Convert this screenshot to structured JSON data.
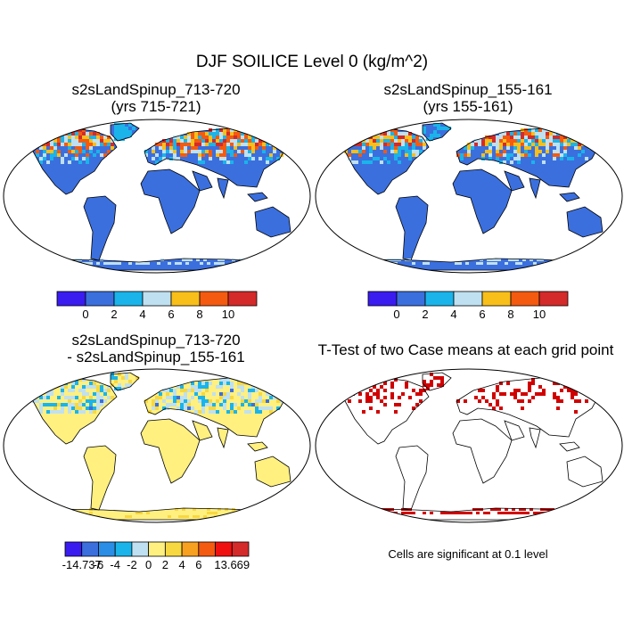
{
  "figure": {
    "title": "DJF SOILICE Level 0 (kg/m^2)",
    "significance_note": "Cells are significant at 0.1 level"
  },
  "chart_data": [
    {
      "type": "heatmap",
      "panel": "top-left",
      "title": "s2sLandSpinup_713-720",
      "subtitle": "(yrs 715-721)",
      "projection": "Robinson",
      "colorbar": {
        "colors": [
          "#3a1cf0",
          "#3b6fde",
          "#1ab4ea",
          "#bfe0f0",
          "#f8bf1a",
          "#f45a10",
          "#d42a2a"
        ],
        "ticks": [
          "0",
          "2",
          "4",
          "6",
          "8",
          "10"
        ]
      }
    },
    {
      "type": "heatmap",
      "panel": "top-right",
      "title": "s2sLandSpinup_155-161",
      "subtitle": "(yrs 155-161)",
      "projection": "Robinson",
      "colorbar": {
        "colors": [
          "#3a1cf0",
          "#3b6fde",
          "#1ab4ea",
          "#bfe0f0",
          "#f8bf1a",
          "#f45a10",
          "#d42a2a"
        ],
        "ticks": [
          "0",
          "2",
          "4",
          "6",
          "8",
          "10"
        ]
      }
    },
    {
      "type": "heatmap",
      "panel": "bottom-left",
      "title": "s2sLandSpinup_713-720",
      "subtitle": "- s2sLandSpinup_155-161",
      "projection": "Robinson",
      "colorbar": {
        "colors": [
          "#3a1cf0",
          "#3b6fde",
          "#2a8ee6",
          "#1ab4ea",
          "#bfe0f0",
          "#fff080",
          "#f8d840",
          "#f8a020",
          "#f45a10",
          "#f01010",
          "#d42a2a"
        ],
        "ticks": [
          "-14.737",
          "-6",
          "-4",
          "-2",
          "0",
          "2",
          "4",
          "6",
          "13.669"
        ]
      }
    },
    {
      "type": "heatmap",
      "panel": "bottom-right",
      "title": "T-Test of two Case means at each grid point",
      "subtitle": "",
      "projection": "Robinson",
      "significant_color": "#d00000"
    }
  ]
}
